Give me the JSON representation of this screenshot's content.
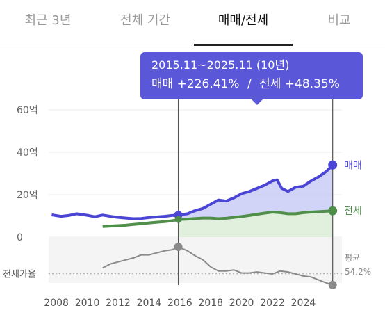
{
  "tabs": [
    {
      "label": "최근 3년"
    },
    {
      "label": "전체 기간"
    },
    {
      "label": "매매/전세"
    },
    {
      "label": "비교"
    }
  ],
  "active_tab": 2,
  "tooltip": {
    "period": "2015.11~2025.11 (10년)",
    "sale_text": "매매 +226.41%",
    "separator": "/",
    "jeonse_text": "전세 +48.35%"
  },
  "colors": {
    "sale": "#4b45d6",
    "sale_fill": "#c9ccf4",
    "jeonse": "#4f8f4a",
    "jeonse_fill": "#d4e8cf",
    "ratio": "#8a8a8a",
    "tooltip_bg": "#5b57d9"
  },
  "chart_data": {
    "type": "line",
    "x_tick_labels": [
      "2008",
      "2010",
      "2012",
      "2014",
      "2016",
      "2018",
      "2020",
      "2022",
      "2024"
    ],
    "xlim": [
      2007.5,
      2026.5
    ],
    "price_panel": {
      "y_tick_labels": [
        "60억",
        "40억",
        "20억",
        "0"
      ],
      "ylim": [
        0,
        60
      ],
      "series": [
        {
          "name": "매매",
          "end_label": "매매",
          "points": [
            [
              2007.7,
              10.5
            ],
            [
              2008.3,
              9.8
            ],
            [
              2008.8,
              10.2
            ],
            [
              2009.3,
              11.0
            ],
            [
              2010.0,
              10.3
            ],
            [
              2010.5,
              9.6
            ],
            [
              2011.0,
              10.4
            ],
            [
              2011.5,
              9.8
            ],
            [
              2012.0,
              9.3
            ],
            [
              2012.5,
              9.0
            ],
            [
              2013.0,
              8.7
            ],
            [
              2013.5,
              8.8
            ],
            [
              2014.0,
              9.2
            ],
            [
              2014.5,
              9.5
            ],
            [
              2015.0,
              9.8
            ],
            [
              2015.5,
              10.2
            ],
            [
              2015.9,
              10.4
            ],
            [
              2016.5,
              11.0
            ],
            [
              2017.0,
              12.5
            ],
            [
              2017.5,
              13.5
            ],
            [
              2018.0,
              15.5
            ],
            [
              2018.5,
              17.5
            ],
            [
              2019.0,
              17.0
            ],
            [
              2019.5,
              18.5
            ],
            [
              2020.0,
              20.5
            ],
            [
              2020.5,
              21.5
            ],
            [
              2021.0,
              23.0
            ],
            [
              2021.5,
              24.5
            ],
            [
              2022.0,
              26.5
            ],
            [
              2022.3,
              27.0
            ],
            [
              2022.6,
              23.0
            ],
            [
              2023.0,
              21.5
            ],
            [
              2023.5,
              23.5
            ],
            [
              2024.0,
              24.0
            ],
            [
              2024.5,
              26.5
            ],
            [
              2025.0,
              28.5
            ],
            [
              2025.5,
              31.0
            ],
            [
              2025.9,
              34.0
            ]
          ]
        },
        {
          "name": "전세",
          "end_label": "전세",
          "points": [
            [
              2011.0,
              5.0
            ],
            [
              2011.5,
              5.2
            ],
            [
              2012.0,
              5.4
            ],
            [
              2012.5,
              5.6
            ],
            [
              2013.0,
              6.0
            ],
            [
              2013.5,
              6.3
            ],
            [
              2014.0,
              6.7
            ],
            [
              2014.5,
              7.0
            ],
            [
              2015.0,
              7.3
            ],
            [
              2015.5,
              7.7
            ],
            [
              2015.9,
              8.3
            ],
            [
              2016.5,
              8.5
            ],
            [
              2017.0,
              8.8
            ],
            [
              2017.5,
              9.0
            ],
            [
              2018.0,
              9.0
            ],
            [
              2018.5,
              8.7
            ],
            [
              2019.0,
              8.9
            ],
            [
              2019.5,
              9.3
            ],
            [
              2020.0,
              9.7
            ],
            [
              2020.5,
              10.2
            ],
            [
              2021.0,
              10.8
            ],
            [
              2021.5,
              11.3
            ],
            [
              2022.0,
              11.8
            ],
            [
              2022.5,
              11.5
            ],
            [
              2023.0,
              11.0
            ],
            [
              2023.5,
              11.0
            ],
            [
              2024.0,
              11.5
            ],
            [
              2024.5,
              11.8
            ],
            [
              2025.0,
              12.0
            ],
            [
              2025.5,
              12.2
            ],
            [
              2025.9,
              12.4
            ]
          ]
        }
      ]
    },
    "ratio_panel": {
      "label": "전세가율",
      "average_label": "평균",
      "average_value": "54.2%",
      "ylim": [
        45,
        90
      ],
      "average": 54.2,
      "series": [
        {
          "name": "전세가율",
          "points": [
            [
              2011.0,
              60
            ],
            [
              2011.5,
              64
            ],
            [
              2012.0,
              66
            ],
            [
              2012.5,
              68
            ],
            [
              2013.0,
              70
            ],
            [
              2013.5,
              73
            ],
            [
              2014.0,
              73
            ],
            [
              2014.5,
              75
            ],
            [
              2015.0,
              77
            ],
            [
              2015.5,
              78
            ],
            [
              2015.9,
              81
            ],
            [
              2016.5,
              77
            ],
            [
              2017.0,
              72
            ],
            [
              2017.5,
              68
            ],
            [
              2018.0,
              61
            ],
            [
              2018.5,
              57
            ],
            [
              2019.0,
              57
            ],
            [
              2019.5,
              58
            ],
            [
              2020.0,
              55
            ],
            [
              2020.5,
              55
            ],
            [
              2021.0,
              56
            ],
            [
              2021.5,
              55
            ],
            [
              2022.0,
              54
            ],
            [
              2022.5,
              57
            ],
            [
              2023.0,
              56
            ],
            [
              2023.5,
              54
            ],
            [
              2024.0,
              52
            ],
            [
              2024.5,
              51
            ],
            [
              2025.0,
              48
            ],
            [
              2025.5,
              45
            ],
            [
              2025.9,
              43
            ]
          ]
        }
      ]
    },
    "highlight_range": [
      2015.9,
      2025.9
    ]
  }
}
